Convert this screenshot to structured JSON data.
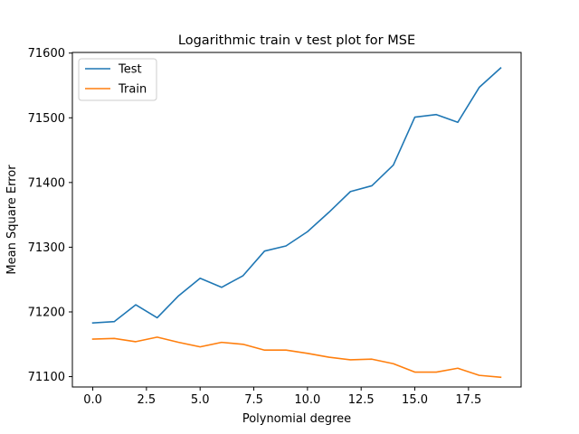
{
  "chart_data": {
    "type": "line",
    "title": "Logarithmic train v test plot for MSE",
    "xlabel": "Polynomial degree",
    "ylabel": "Mean Square Error",
    "x": [
      0,
      1,
      2,
      3,
      4,
      5,
      6,
      7,
      8,
      9,
      10,
      11,
      12,
      13,
      14,
      15,
      16,
      17,
      18,
      19
    ],
    "xlim": [
      -0.95,
      19.95
    ],
    "ylim": [
      71084,
      71601
    ],
    "xticks": [
      0,
      2.5,
      5,
      7.5,
      10,
      12.5,
      15,
      17.5
    ],
    "xtick_labels": [
      "0.0",
      "2.5",
      "5.0",
      "7.5",
      "10.0",
      "12.5",
      "15.0",
      "17.5"
    ],
    "yticks": [
      71100,
      71200,
      71300,
      71400,
      71500,
      71600
    ],
    "ytick_labels": [
      "71100",
      "71200",
      "71300",
      "71400",
      "71500",
      "71600"
    ],
    "grid": false,
    "legend_position": "upper-left",
    "series": [
      {
        "name": "Test",
        "color": "#1f77b4",
        "values": [
          71183,
          71185,
          71211,
          71191,
          71225,
          71252,
          71238,
          71256,
          71294,
          71302,
          71324,
          71354,
          71386,
          71395,
          71427,
          71501,
          71505,
          71493,
          71547,
          71577
        ]
      },
      {
        "name": "Train",
        "color": "#ff7f0e",
        "values": [
          71158,
          71159,
          71154,
          71161,
          71153,
          71146,
          71153,
          71150,
          71141,
          71141,
          71136,
          71130,
          71126,
          71127,
          71120,
          71107,
          71107,
          71113,
          71102,
          71099
        ]
      }
    ]
  }
}
